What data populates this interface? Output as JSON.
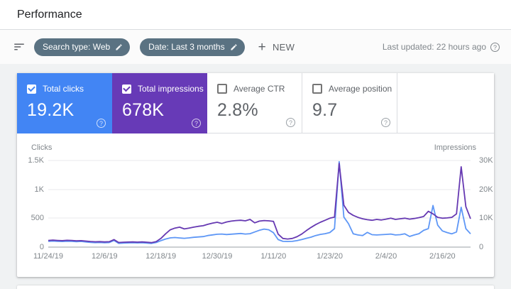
{
  "header": {
    "title": "Performance"
  },
  "filter_bar": {
    "chips": [
      {
        "label": "Search type: Web"
      },
      {
        "label": "Date: Last 3 months"
      }
    ],
    "new_label": "NEW",
    "last_updated": "Last updated: 22 hours ago"
  },
  "icons": {
    "help": "?",
    "plus": "+"
  },
  "metric_cards": [
    {
      "label": "Total clicks",
      "value": "19.2K",
      "selected": true,
      "color": "#4285f4"
    },
    {
      "label": "Total impressions",
      "value": "678K",
      "selected": true,
      "color": "#673ab7"
    },
    {
      "label": "Average CTR",
      "value": "2.8%",
      "selected": false,
      "color": "#ffffff"
    },
    {
      "label": "Average position",
      "value": "9.7",
      "selected": false,
      "color": "#ffffff"
    }
  ],
  "chart_data": {
    "type": "line",
    "grid": true,
    "x_tick_labels": [
      "11/24/19",
      "12/6/19",
      "12/18/19",
      "12/30/19",
      "1/11/20",
      "1/23/20",
      "2/4/20",
      "2/16/20"
    ],
    "x_tick_days": [
      0,
      12,
      24,
      36,
      48,
      60,
      72,
      84
    ],
    "total_days": 90,
    "left_axis": {
      "label": "Clicks",
      "max": 1500,
      "tick_labels_top_to_bottom": [
        "1.5K",
        "1K",
        "500",
        "0"
      ]
    },
    "right_axis": {
      "label": "Impressions",
      "max": 30000,
      "tick_labels_top_to_bottom": [
        "30K",
        "20K",
        "10K",
        "0"
      ]
    },
    "series": [
      {
        "name": "Total clicks",
        "axis": "left",
        "color": "#5e97f6",
        "values": [
          100,
          105,
          100,
          97,
          102,
          99,
          95,
          98,
          90,
          82,
          78,
          80,
          76,
          79,
          115,
          65,
          70,
          73,
          76,
          72,
          76,
          70,
          64,
          80,
          112,
          140,
          160,
          166,
          158,
          152,
          160,
          170,
          176,
          182,
          200,
          212,
          222,
          226,
          218,
          224,
          230,
          236,
          226,
          232,
          262,
          292,
          312,
          300,
          250,
          130,
          100,
          97,
          100,
          112,
          130,
          152,
          172,
          200,
          220,
          232,
          252,
          320,
          1480,
          520,
          405,
          230,
          210,
          200,
          255,
          215,
          210,
          215,
          220,
          226,
          210,
          215,
          230,
          185,
          210,
          232,
          290,
          320,
          720,
          380,
          280,
          252,
          230,
          262,
          690,
          320,
          230
        ]
      },
      {
        "name": "Total impressions",
        "axis": "right",
        "color": "#6639b2",
        "values": [
          2300,
          2400,
          2300,
          2250,
          2350,
          2300,
          2200,
          2250,
          2100,
          1950,
          1850,
          1900,
          1800,
          1880,
          2600,
          1600,
          1700,
          1750,
          1800,
          1720,
          1800,
          1700,
          1560,
          1900,
          3000,
          4600,
          6000,
          6600,
          6900,
          6300,
          6600,
          6900,
          7200,
          7400,
          7900,
          8300,
          8600,
          8200,
          8700,
          9000,
          9200,
          9300,
          9100,
          9600,
          8400,
          9000,
          9200,
          9100,
          8900,
          4500,
          3000,
          2800,
          3000,
          3600,
          4500,
          5700,
          6800,
          7800,
          8600,
          9300,
          10000,
          10400,
          29000,
          14500,
          12000,
          11000,
          10300,
          9800,
          9500,
          9300,
          9600,
          9400,
          9700,
          10000,
          9600,
          9800,
          10000,
          9700,
          9900,
          10200,
          10600,
          12400,
          11500,
          10300,
          10000,
          10100,
          10300,
          11500,
          27800,
          14000,
          9800
        ]
      }
    ]
  }
}
